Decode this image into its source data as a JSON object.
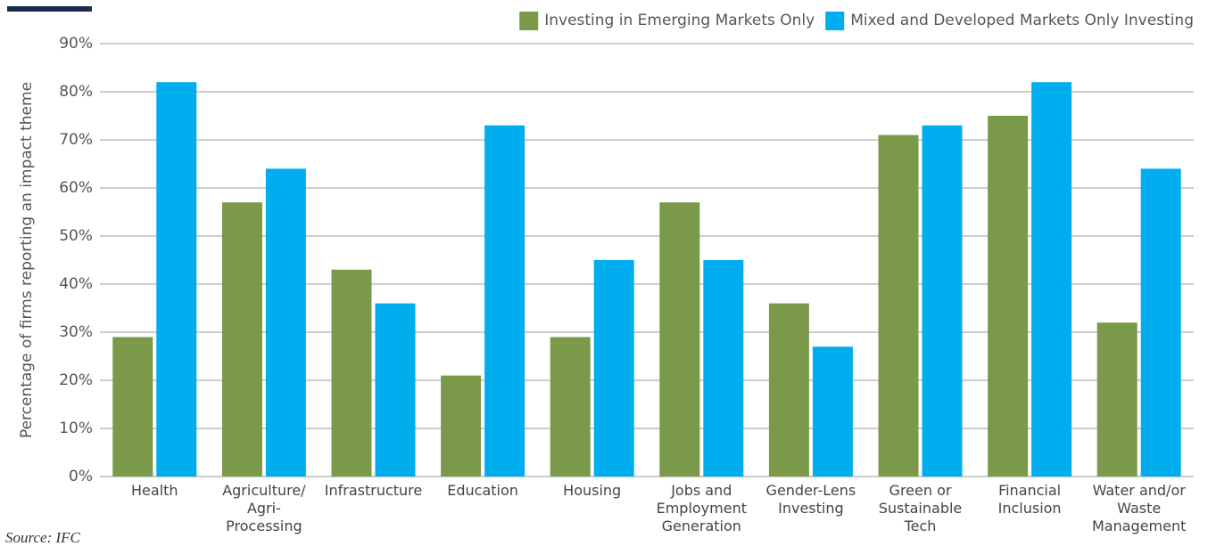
{
  "chart_data": {
    "type": "bar",
    "y_label": "Percentage of firms reporting an impact theme",
    "source": "Source: IFC",
    "categories": [
      "Health",
      "Agriculture/ Agri-Processing",
      "Infrastructure",
      "Education",
      "Housing",
      "Jobs and Employment Generation",
      "Gender-Lens Investing",
      "Green or Sustainable Tech",
      "Financial Inclusion",
      "Water and/or Waste Management"
    ],
    "series": [
      {
        "name": "Investing in Emerging Markets Only",
        "color": "#7a9a4a",
        "values": [
          29,
          57,
          43,
          21,
          29,
          57,
          36,
          71,
          75,
          32
        ]
      },
      {
        "name": "Mixed and Developed Markets Only Investing",
        "color": "#00aeef",
        "values": [
          82,
          64,
          36,
          73,
          45,
          45,
          27,
          73,
          82,
          64
        ]
      }
    ],
    "ylim": [
      0,
      90
    ],
    "yticks": [
      {
        "value": 0,
        "label": "0%"
      },
      {
        "value": 10,
        "label": "10%"
      },
      {
        "value": 20,
        "label": "20%"
      },
      {
        "value": 30,
        "label": "30%"
      },
      {
        "value": 40,
        "label": "40%"
      },
      {
        "value": 50,
        "label": "50%"
      },
      {
        "value": 60,
        "label": "60%"
      },
      {
        "value": 70,
        "label": "70%"
      },
      {
        "value": 80,
        "label": "80%"
      },
      {
        "value": 90,
        "label": "90%"
      }
    ],
    "grid": true,
    "legend": "top-right"
  }
}
